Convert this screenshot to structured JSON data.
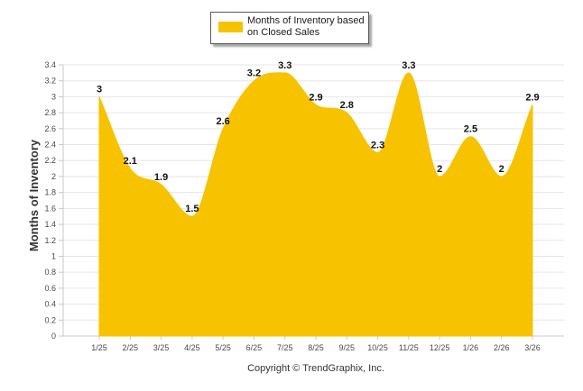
{
  "chart_data": {
    "type": "area",
    "title": "",
    "xlabel": "",
    "ylabel": "Months of Inventory",
    "categories": [
      "1/25",
      "2/25",
      "3/25",
      "4/25",
      "5/25",
      "6/25",
      "7/25",
      "8/25",
      "9/25",
      "10/25",
      "11/25",
      "12/25",
      "1/26",
      "2/26",
      "3/26"
    ],
    "series": [
      {
        "name": "Months of Inventory based on Closed Sales",
        "values": [
          3,
          2.1,
          1.9,
          1.5,
          2.6,
          3.2,
          3.3,
          2.9,
          2.8,
          2.3,
          3.3,
          2,
          2.5,
          2,
          2.9
        ],
        "labels": [
          "3",
          "2.1",
          "1.9",
          "1.5",
          "2.6",
          "3.2",
          "3.3",
          "2.9",
          "2.8",
          "2.3",
          "3.3",
          "2",
          "2.5",
          "2",
          "2.9"
        ],
        "color": "#F7C200"
      }
    ],
    "ylim": [
      0,
      3.4
    ],
    "yticks": [
      "0",
      "0.2",
      "0.4",
      "0.6",
      "0.8",
      "1",
      "1.2",
      "1.4",
      "1.6",
      "1.8",
      "2",
      "2.2",
      "2.4",
      "2.6",
      "2.8",
      "3",
      "3.2",
      "3.4"
    ],
    "grid": true,
    "legend_position": "top-center"
  },
  "legend": {
    "label": "Months of Inventory based on Closed Sales"
  },
  "credit": "Copyright © TrendGraphix, Inc.",
  "colors": {
    "area": "#F7C200",
    "grid": "#e6e6e6",
    "axis": "#c8c8c8"
  }
}
